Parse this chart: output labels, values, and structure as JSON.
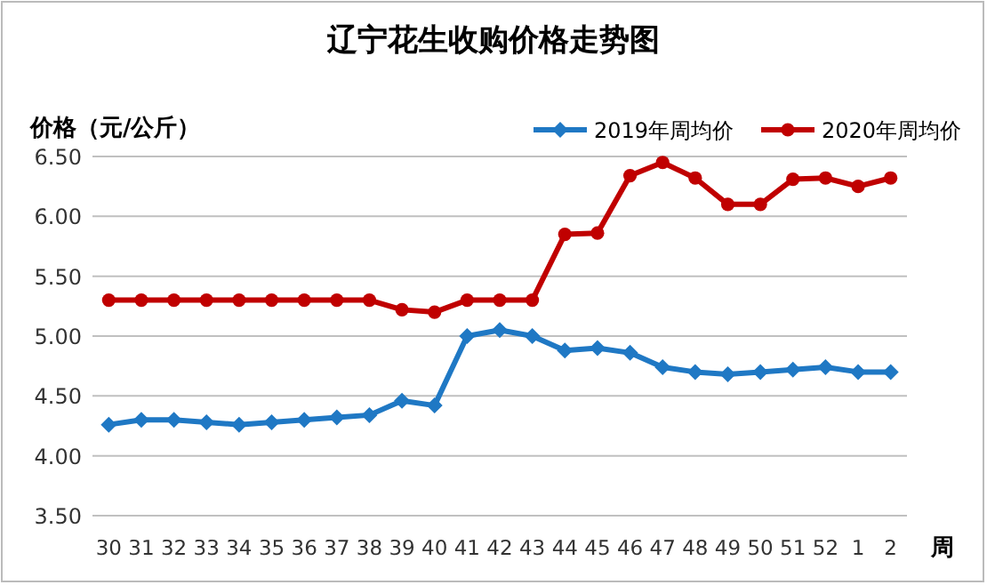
{
  "chart_data": {
    "type": "line",
    "title": "辽宁花生收购价格走势图",
    "ylabel": "价格（元/公斤）",
    "xlabel": "周",
    "categories": [
      "30",
      "31",
      "32",
      "33",
      "34",
      "35",
      "36",
      "37",
      "38",
      "39",
      "40",
      "41",
      "42",
      "43",
      "44",
      "45",
      "46",
      "47",
      "48",
      "49",
      "50",
      "51",
      "52",
      "1",
      "2"
    ],
    "series": [
      {
        "name": "2019年周均价",
        "color": "#1f78c4",
        "marker": "diamond",
        "values": [
          4.26,
          4.3,
          4.3,
          4.28,
          4.26,
          4.28,
          4.3,
          4.32,
          4.34,
          4.46,
          4.42,
          5.0,
          5.05,
          5.0,
          4.88,
          4.9,
          4.86,
          4.74,
          4.7,
          4.68,
          4.7,
          4.72,
          4.74,
          4.7,
          4.7
        ]
      },
      {
        "name": "2020年周均价",
        "color": "#c00000",
        "marker": "circle",
        "values": [
          5.3,
          5.3,
          5.3,
          5.3,
          5.3,
          5.3,
          5.3,
          5.3,
          5.3,
          5.22,
          5.2,
          5.3,
          5.3,
          5.3,
          5.85,
          5.86,
          6.34,
          6.45,
          6.32,
          6.1,
          6.1,
          6.31,
          6.32,
          6.25,
          6.32
        ]
      }
    ],
    "ylim": [
      3.5,
      6.5
    ],
    "yticks": [
      {
        "value": 3.5,
        "label": "3.50"
      },
      {
        "value": 4,
        "label": "4.00"
      },
      {
        "value": 4.5,
        "label": "4.50"
      },
      {
        "value": 5,
        "label": "5.00"
      },
      {
        "value": 5.5,
        "label": "5.50"
      },
      {
        "value": 6,
        "label": "6.00"
      },
      {
        "value": 6.5,
        "label": "6.50"
      }
    ],
    "grid": "y",
    "legend": "top right",
    "line_style": "solid"
  }
}
